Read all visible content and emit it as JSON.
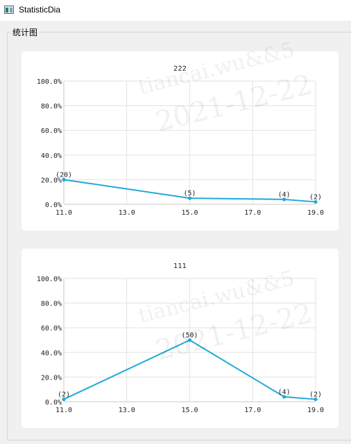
{
  "window": {
    "title": "StatisticDia",
    "icon": "app-window-icon"
  },
  "groupbox": {
    "title": "统计图"
  },
  "watermark": {
    "line1": "tiancai.wu&&5",
    "line2": "2021-12-22"
  },
  "colors": {
    "series": "#1fa9d8",
    "grid": "#e2e2e2",
    "axis": "#c8c8c8"
  },
  "chart_data": [
    {
      "type": "line",
      "title": "222",
      "xlim": [
        11,
        19
      ],
      "ylim": [
        0,
        100
      ],
      "x_ticks": [
        "11.0",
        "13.0",
        "15.0",
        "17.0",
        "19.0"
      ],
      "y_ticks": [
        "0.0%",
        "20.0%",
        "40.0%",
        "60.0%",
        "80.0%",
        "100.0%"
      ],
      "grid": true,
      "series": [
        {
          "x": [
            11,
            15,
            18,
            19
          ],
          "y": [
            20,
            5,
            4,
            2
          ],
          "labels": [
            "(20)",
            "(5)",
            "(4)",
            "(2)"
          ]
        }
      ]
    },
    {
      "type": "line",
      "title": "111",
      "xlim": [
        11,
        19
      ],
      "ylim": [
        0,
        100
      ],
      "x_ticks": [
        "11.0",
        "13.0",
        "15.0",
        "17.0",
        "19.0"
      ],
      "y_ticks": [
        "0.0%",
        "20.0%",
        "40.0%",
        "60.0%",
        "80.0%",
        "100.0%"
      ],
      "grid": true,
      "series": [
        {
          "x": [
            11,
            15,
            18,
            19
          ],
          "y": [
            2,
            50,
            4,
            2
          ],
          "labels": [
            "(2)",
            "(50)",
            "(4)",
            "(2)"
          ]
        }
      ]
    }
  ]
}
